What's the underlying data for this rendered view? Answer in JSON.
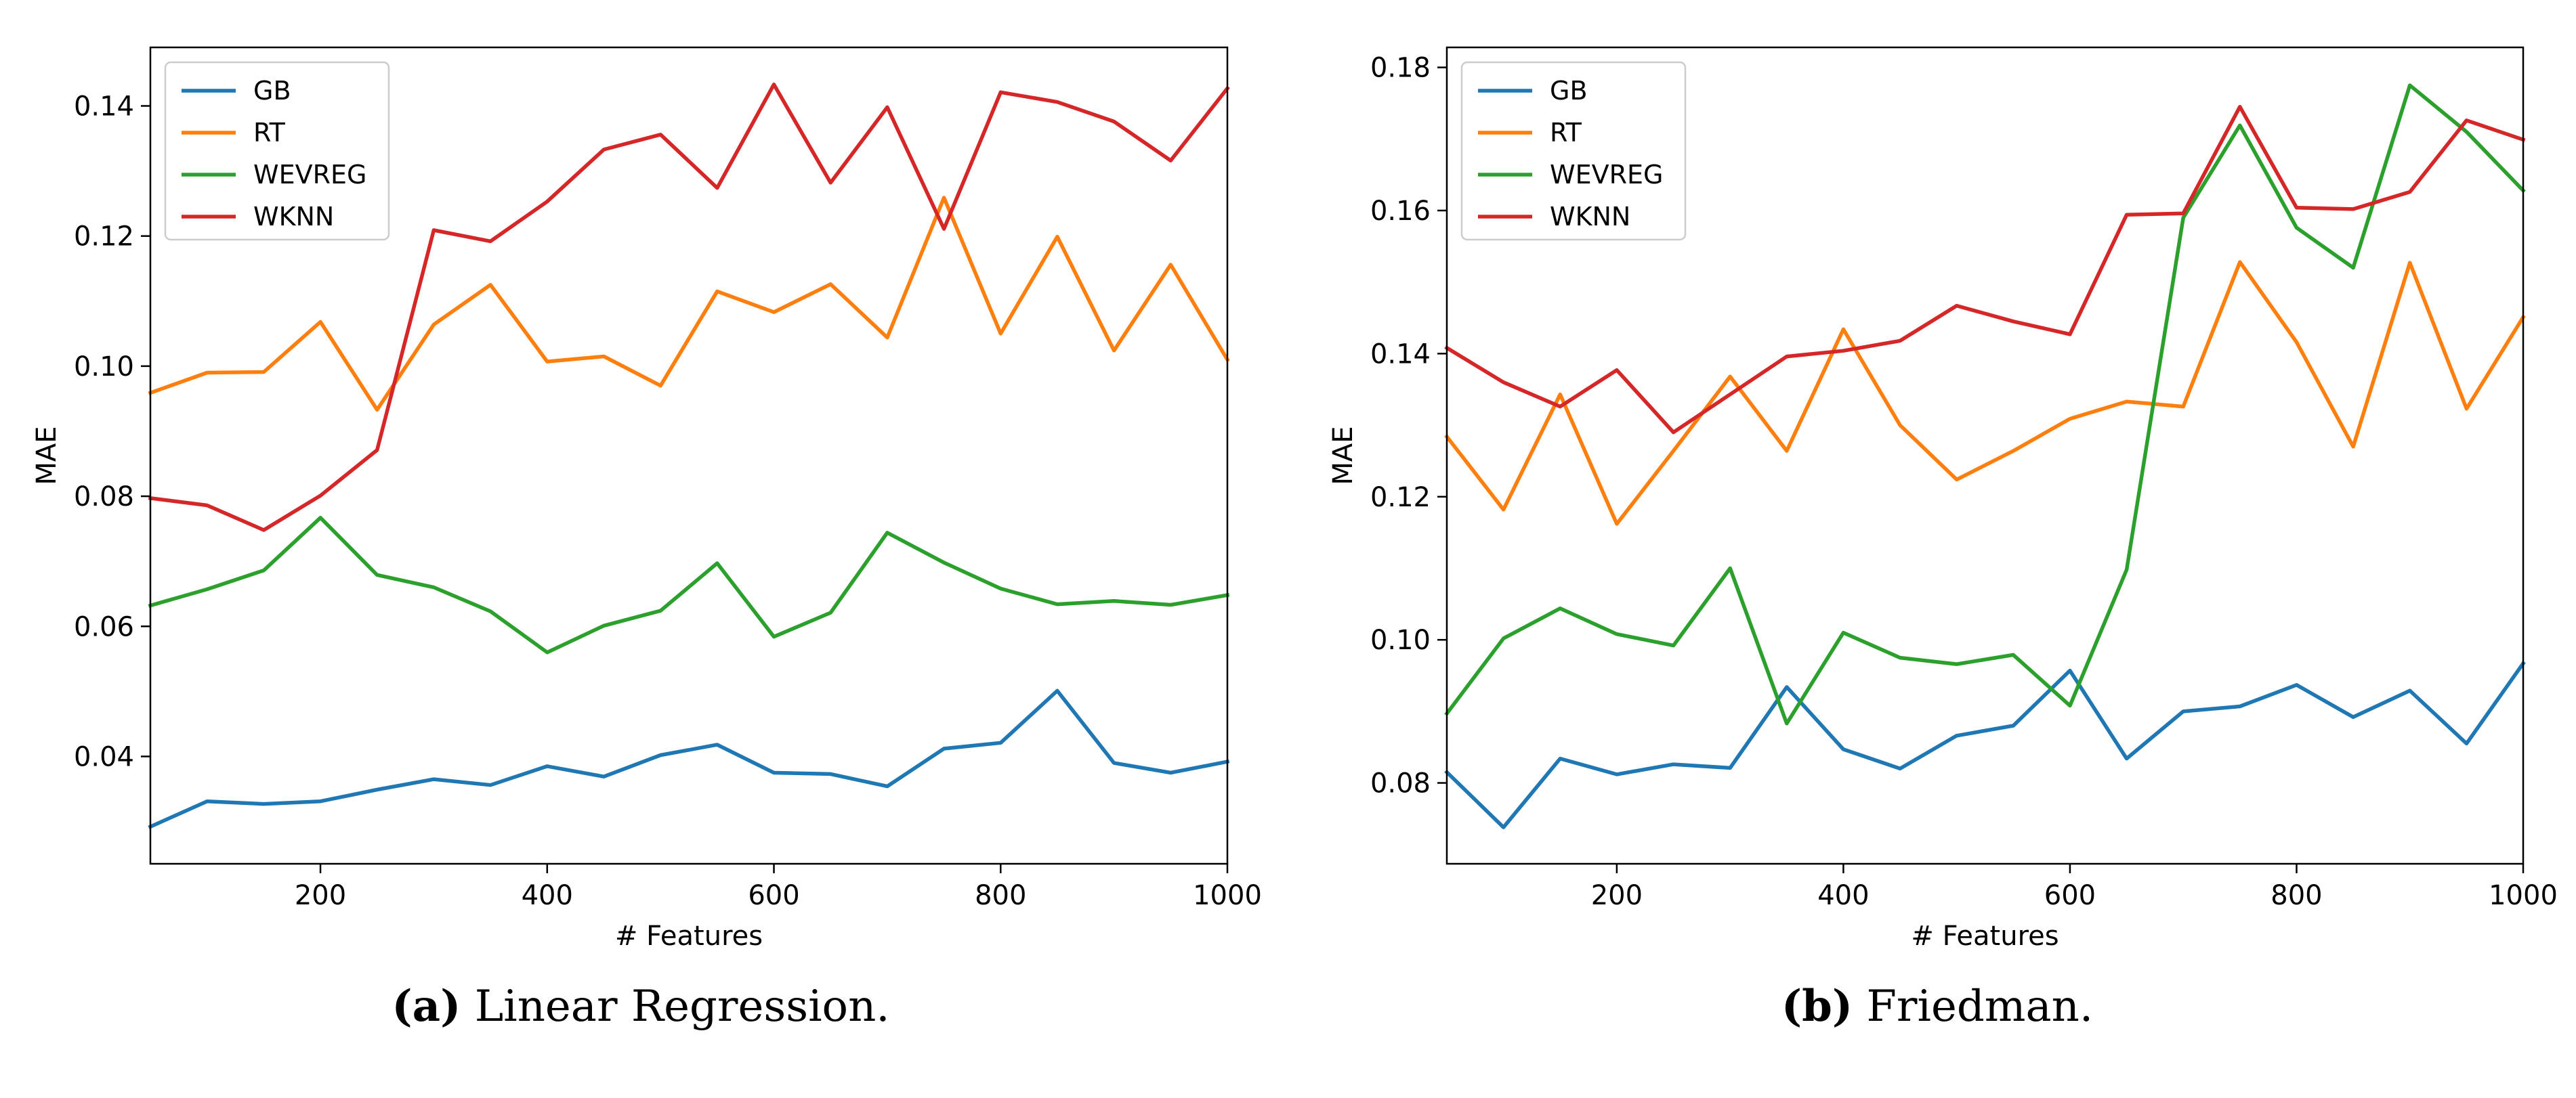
{
  "series_colors": [
    "#1f77b4",
    "#ff7f0e",
    "#2ca02c",
    "#d62728"
  ],
  "chart_data": [
    {
      "type": "line",
      "caption_letter": "(a)",
      "caption_text": " Linear Regression.",
      "xlabel": "# Features",
      "ylabel": "MAE",
      "xlim": [
        50,
        1000
      ],
      "ylim": [
        0.0235,
        0.149
      ],
      "xticks": [
        200,
        400,
        600,
        800,
        1000
      ],
      "yticks": [
        0.04,
        0.06,
        0.08,
        0.1,
        0.12,
        0.14
      ],
      "ytick_labels": [
        "0.04",
        "0.06",
        "0.08",
        "0.10",
        "0.12",
        "0.14"
      ],
      "legend_loc": "upper left",
      "x": [
        50,
        100,
        150,
        200,
        250,
        300,
        350,
        400,
        450,
        500,
        550,
        600,
        650,
        700,
        750,
        800,
        850,
        900,
        950,
        1000
      ],
      "series": [
        {
          "name": "GB",
          "values": [
            0.0292,
            0.0331,
            0.0327,
            0.0331,
            0.0349,
            0.0365,
            0.0356,
            0.0385,
            0.0369,
            0.0402,
            0.0418,
            0.0375,
            0.0373,
            0.0354,
            0.0412,
            0.0421,
            0.0501,
            0.039,
            0.0375,
            0.0392
          ]
        },
        {
          "name": "RT",
          "values": [
            0.0959,
            0.099,
            0.0991,
            0.1068,
            0.0933,
            0.1064,
            0.1125,
            0.1007,
            0.1015,
            0.097,
            0.1115,
            0.1083,
            0.1126,
            0.1044,
            0.1259,
            0.105,
            0.1199,
            0.1024,
            0.1156,
            0.101
          ]
        },
        {
          "name": "WEVREG",
          "values": [
            0.0632,
            0.0657,
            0.0686,
            0.0767,
            0.0679,
            0.066,
            0.0623,
            0.056,
            0.0601,
            0.0624,
            0.0697,
            0.0584,
            0.0621,
            0.0744,
            0.0698,
            0.0658,
            0.0634,
            0.0639,
            0.0633,
            0.0648
          ]
        },
        {
          "name": "WKNN",
          "values": [
            0.0797,
            0.0786,
            0.0748,
            0.0801,
            0.0871,
            0.1209,
            0.1192,
            0.1253,
            0.1333,
            0.1356,
            0.1274,
            0.1433,
            0.1282,
            0.1398,
            0.1211,
            0.1421,
            0.1406,
            0.1376,
            0.1316,
            0.1427
          ]
        }
      ]
    },
    {
      "type": "line",
      "caption_letter": "(b)",
      "caption_text": " Friedman.",
      "xlabel": "# Features",
      "ylabel": "MAE",
      "xlim": [
        50,
        1000
      ],
      "ylim": [
        0.0687,
        0.1828
      ],
      "xticks": [
        200,
        400,
        600,
        800,
        1000
      ],
      "yticks": [
        0.08,
        0.1,
        0.12,
        0.14,
        0.16,
        0.18
      ],
      "ytick_labels": [
        "0.08",
        "0.10",
        "0.12",
        "0.14",
        "0.16",
        "0.18"
      ],
      "legend_loc": "upper left",
      "x": [
        50,
        100,
        150,
        200,
        250,
        300,
        350,
        400,
        450,
        500,
        550,
        600,
        650,
        700,
        750,
        800,
        850,
        900,
        950,
        1000
      ],
      "series": [
        {
          "name": "GB",
          "values": [
            0.0815,
            0.0738,
            0.0834,
            0.0812,
            0.0826,
            0.0821,
            0.0934,
            0.0847,
            0.082,
            0.0866,
            0.088,
            0.0957,
            0.0834,
            0.09,
            0.0907,
            0.0937,
            0.0892,
            0.0929,
            0.0855,
            0.0967
          ]
        },
        {
          "name": "RT",
          "values": [
            0.1284,
            0.1182,
            0.1343,
            0.1162,
            0.1264,
            0.1368,
            0.1264,
            0.1434,
            0.13,
            0.1224,
            0.1264,
            0.1309,
            0.1333,
            0.1326,
            0.1528,
            0.1416,
            0.127,
            0.1527,
            0.1323,
            0.1451
          ]
        },
        {
          "name": "WEVREG",
          "values": [
            0.0897,
            0.1002,
            0.1044,
            0.1008,
            0.0992,
            0.11,
            0.0883,
            0.101,
            0.0975,
            0.0966,
            0.0979,
            0.0908,
            0.1098,
            0.159,
            0.1719,
            0.1576,
            0.152,
            0.1775,
            0.171,
            0.1628
          ]
        },
        {
          "name": "WKNN",
          "values": [
            0.1408,
            0.136,
            0.1326,
            0.1377,
            0.129,
            0.1343,
            0.1396,
            0.1404,
            0.1418,
            0.1467,
            0.1445,
            0.1427,
            0.1594,
            0.1596,
            0.1745,
            0.1604,
            0.1602,
            0.1626,
            0.1726,
            0.1699
          ]
        }
      ]
    }
  ]
}
